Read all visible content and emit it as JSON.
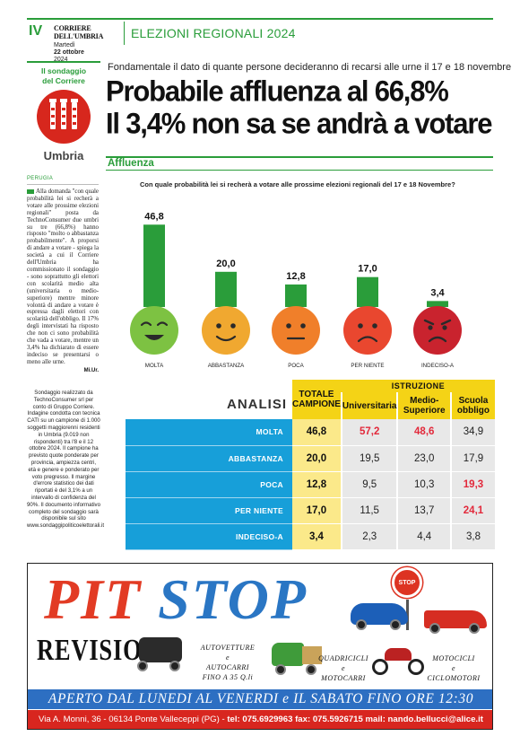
{
  "header": {
    "page_number": "IV",
    "newspaper": "CORRIERE DELL'UMBRIA",
    "day": "Martedì",
    "date": "22 ottobre",
    "year": "2024",
    "section": "ELEZIONI REGIONALI 2024"
  },
  "brand_box": {
    "label_line1": "Il sondaggio",
    "label_line2": "del Corriere",
    "region": "Umbria"
  },
  "article": {
    "kicker": "Fondamentale il dato di quante persone decideranno di recarsi alle urne il 17 e 18 novembre",
    "headline_line1": "Probabile affluenza al 66,8%",
    "headline_line2": "Il 3,4% non sa se andrà a votare",
    "band_label": "Affluenza",
    "city": "PERUGIA",
    "body": "Alla domanda \"con quale probabilità lei si recherà a votare alle prossime elezioni regionali\" posta da TechnoConsumer due umbri su tre (66,8%) hanno risposto \"molto o abbastanza probabilmente\". A proporsi di andare a votare - spiega la società a cui il Corriere dell'Umbria ha commissionato il sondaggio - sono soprattutto gli elettori con scolarità medio alta (universitaria o medio-superiore) mentre minore volontà di andare a votare è espressa dagli elettori con scolarità dell'obbligo. Il 17% degli intervistati ha risposto che non ci sono probabilità che vada a votare, mentre un 3,4% ha dichiarato di essere indeciso se presentarsi o meno alle urne.",
    "byline": "Mi.Ur."
  },
  "methodology": "Sondaggio realizzato da TechnoConsumer srl per conto di Gruppo Corriere. Indagine condotta con tecnica CATI su un campione di 1.000 soggetti maggiorenni residenti in Umbria (9.019 non rispondenti) tra l'8 e il 12 ottobre 2024. Il campione ha previsto quote ponderate per provincia, ampiezza centri, età e genere e ponderato per voto pregresso. Il margine d'errore statistico dei dati riportati è del 3,1% a un intervallo di confidenza del 90%. Il documento informativo completo del sondaggio sarà disponibile sul sito www.sondaggipoliticoelettorali.it",
  "chart_question": "Con quale probabilità lei si recherà a votare alle prossime elezioni regionali del 17 e 18 Novembre?",
  "chart_data": {
    "type": "bar",
    "categories": [
      "MOLTA",
      "ABBASTANZA",
      "POCA",
      "PER NIENTE",
      "INDECISO-A"
    ],
    "values": [
      46.8,
      20.0,
      12.8,
      17.0,
      3.4
    ],
    "value_labels": [
      "46,8",
      "20,0",
      "12,8",
      "17,0",
      "3,4"
    ],
    "bar_color": "#2a9d3a",
    "face_colors": [
      "#7dc242",
      "#f0a830",
      "#f07f2a",
      "#e9472f",
      "#c9232e"
    ],
    "moods": [
      "happy",
      "content",
      "neutral",
      "sad",
      "angry"
    ]
  },
  "table": {
    "title": "ANALISI",
    "col_total": "TOTALE CAMPIONE",
    "col_group": "ISTRUZIONE",
    "sub_cols": [
      "Universitaria",
      "Medio-Superiore",
      "Scuola obbligo"
    ],
    "rows": [
      {
        "label": "MOLTA",
        "values": [
          "46,8",
          "57,2",
          "48,6",
          "34,9"
        ],
        "highlight": [
          false,
          true,
          true,
          false
        ]
      },
      {
        "label": "ABBASTANZA",
        "values": [
          "20,0",
          "19,5",
          "23,0",
          "17,9"
        ],
        "highlight": [
          false,
          false,
          false,
          false
        ]
      },
      {
        "label": "POCA",
        "values": [
          "12,8",
          "9,5",
          "10,3",
          "19,3"
        ],
        "highlight": [
          false,
          false,
          false,
          true
        ]
      },
      {
        "label": "PER NIENTE",
        "values": [
          "17,0",
          "11,5",
          "13,7",
          "24,1"
        ],
        "highlight": [
          false,
          false,
          false,
          true
        ]
      },
      {
        "label": "INDECISO-A",
        "values": [
          "3,4",
          "2,3",
          "4,4",
          "3,8"
        ],
        "highlight": [
          false,
          false,
          false,
          false
        ]
      }
    ]
  },
  "ad": {
    "brand_word1": "PIT",
    "brand_word2": "STOP",
    "sign_text": "STOP",
    "sign_small": "PIT",
    "revisioni": "REVISIONI",
    "cap1_l1": "AUTOVETTURE",
    "cap1_l2": "e",
    "cap1_l3": "AUTOCARRI",
    "cap1_l4": "FINO A 35 Q.li",
    "cap2_l1": "QUADRICICLI",
    "cap2_l2": "e",
    "cap2_l3": "MOTOCARRI",
    "cap3_l1": "MOTOCICLI",
    "cap3_l2": "e",
    "cap3_l3": "CICLOMOTORI",
    "hours": "APERTO DAL LUNEDI AL VENERDI e IL SABATO FINO ORE 12:30",
    "address": "Via A. Monni, 36 - 06134 Ponte Valleceppi (PG) - ",
    "contacts": "tel: 075.6929963 fax: 075.5926715 mail: nando.bellucci@alice.it"
  }
}
